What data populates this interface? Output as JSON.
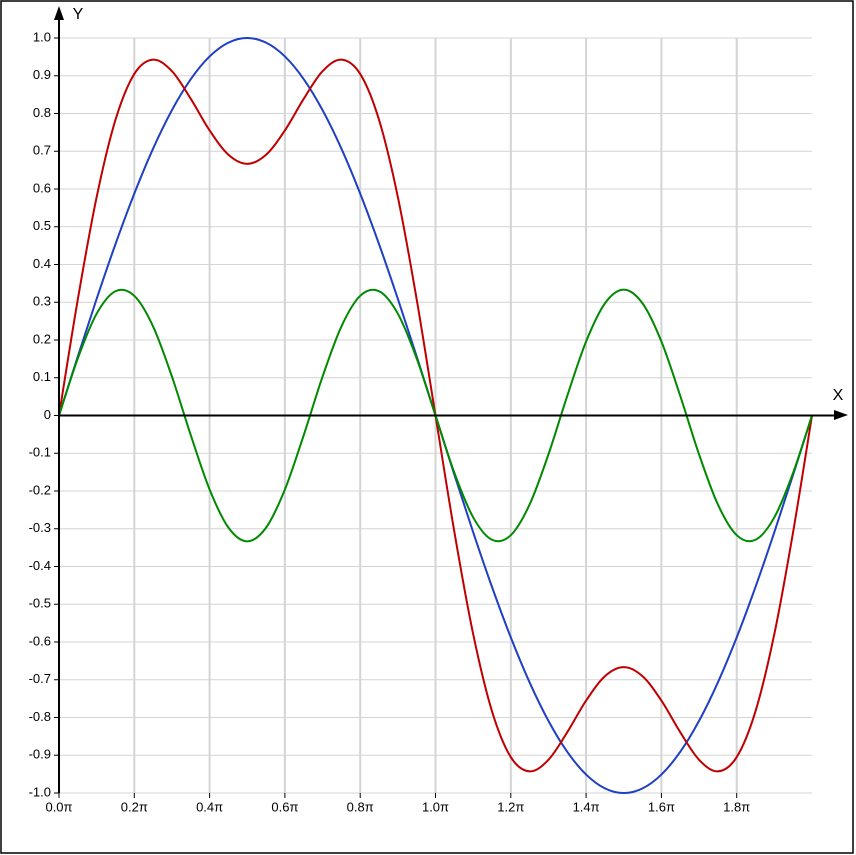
{
  "chart_data": {
    "type": "line",
    "x_label": "X",
    "y_label": "Y",
    "x": [
      0,
      0.05,
      0.1,
      0.15,
      0.2,
      0.25,
      0.3,
      0.35,
      0.4,
      0.45,
      0.5,
      0.55,
      0.6,
      0.65,
      0.7,
      0.75,
      0.8,
      0.85,
      0.9,
      0.95,
      1,
      1.05,
      1.1,
      1.15,
      1.2,
      1.25,
      1.3,
      1.35,
      1.4,
      1.45,
      1.5,
      1.55,
      1.6,
      1.65,
      1.7,
      1.75,
      1.8,
      1.85,
      1.9,
      1.95,
      2
    ],
    "series": [
      {
        "color": "#1f3fc4",
        "values": [
          0,
          0.1564,
          0.309,
          0.454,
          0.5878,
          0.7071,
          0.809,
          0.891,
          0.9511,
          0.9877,
          1,
          0.9877,
          0.9511,
          0.891,
          0.809,
          0.7071,
          0.5878,
          0.454,
          0.309,
          0.1564,
          0,
          -0.1564,
          -0.309,
          -0.454,
          -0.5878,
          -0.7071,
          -0.809,
          -0.891,
          -0.9511,
          -0.9877,
          -1,
          -0.9877,
          -0.9511,
          -0.891,
          -0.809,
          -0.7071,
          -0.5878,
          -0.454,
          -0.309,
          -0.1564,
          0
        ]
      },
      {
        "color": "#c00000",
        "values": [
          0,
          0.3077,
          0.5787,
          0.7832,
          0.9048,
          0.9428,
          0.912,
          0.8389,
          0.7552,
          0.6907,
          0.6667,
          0.6907,
          0.7552,
          0.8389,
          0.912,
          0.9428,
          0.9048,
          0.7832,
          0.5787,
          0.3077,
          0,
          -0.3077,
          -0.5787,
          -0.7832,
          -0.9048,
          -0.9428,
          -0.912,
          -0.8389,
          -0.7552,
          -0.6907,
          -0.6667,
          -0.6907,
          -0.7552,
          -0.8389,
          -0.912,
          -0.9428,
          -0.9048,
          -0.7832,
          -0.5787,
          -0.3077,
          0
        ]
      },
      {
        "color": "#008a00",
        "values": [
          0,
          0.1513,
          0.2697,
          0.3292,
          0.317,
          0.2357,
          0.103,
          -0.0521,
          -0.1959,
          -0.297,
          -0.3333,
          -0.297,
          -0.1959,
          -0.0521,
          0.103,
          0.2357,
          0.317,
          0.3292,
          0.2697,
          0.1513,
          0,
          -0.1513,
          -0.2697,
          -0.3292,
          -0.317,
          -0.2357,
          -0.103,
          0.0521,
          0.1959,
          0.297,
          0.3333,
          0.297,
          0.1959,
          0.0521,
          -0.103,
          -0.2357,
          -0.317,
          -0.3292,
          -0.2697,
          -0.1513,
          0
        ]
      }
    ],
    "xlim": [
      0,
      2
    ],
    "ylim": [
      -1,
      1
    ],
    "xticks": [
      {
        "value": 0,
        "label": "0.0π"
      },
      {
        "value": 0.2,
        "label": "0.2π"
      },
      {
        "value": 0.4,
        "label": "0.4π"
      },
      {
        "value": 0.6,
        "label": "0.6π"
      },
      {
        "value": 0.8,
        "label": "0.8π"
      },
      {
        "value": 1,
        "label": "1.0π"
      },
      {
        "value": 1.2,
        "label": "1.2π"
      },
      {
        "value": 1.4,
        "label": "1.4π"
      },
      {
        "value": 1.6,
        "label": "1.6π"
      },
      {
        "value": 1.8,
        "label": "1.8π"
      }
    ],
    "yticks": [
      {
        "value": 1,
        "label": "1.0"
      },
      0.9,
      0.8,
      0.7,
      0.6,
      0.5,
      0.4,
      0.3,
      0.2,
      0.1,
      0,
      -0.1,
      -0.2,
      -0.3,
      -0.4,
      -0.5,
      -0.6,
      -0.7,
      -0.8,
      -0.9,
      {
        "value": -1,
        "label": "-1.0"
      }
    ],
    "grid": true
  }
}
